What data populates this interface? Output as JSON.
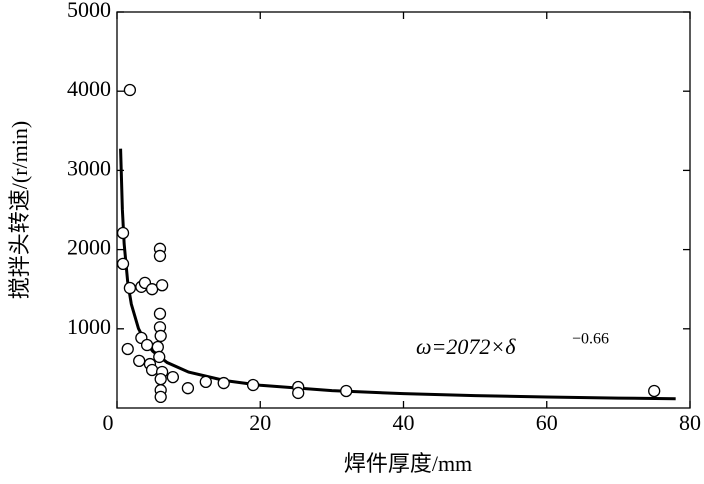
{
  "chart_data": {
    "type": "scatter",
    "x_label": "焊件厚度/mm",
    "y_label": "搅拌头转速/(r/min)",
    "annotation": {
      "text": "ω=2072×δ",
      "exponent": "−0.66"
    },
    "xlim": [
      0,
      80
    ],
    "xticks": [
      0,
      20,
      40,
      60,
      80
    ],
    "ylim": [
      0,
      5000
    ],
    "yticks": [
      1000,
      2000,
      3000,
      4000,
      5000
    ],
    "color": "#000000",
    "points": {
      "x": [
        0.84,
        0.84,
        1.8,
        1.8,
        1.5,
        3.4,
        3.9,
        4.9,
        3.4,
        3.1,
        4.2,
        4.6,
        4.9,
        6.0,
        6.0,
        6.3,
        6.0,
        6.0,
        6.1,
        5.7,
        5.9,
        6.3,
        6.1,
        6.1,
        6.1,
        7.8,
        9.9,
        12.4,
        14.9,
        19,
        25.3,
        25.3,
        32,
        75
      ],
      "values": [
        2210,
        1820,
        4015,
        1515,
        745,
        1530,
        1580,
        1500,
        885,
        595,
        795,
        555,
        480,
        2010,
        1920,
        1550,
        1190,
        1020,
        910,
        770,
        645,
        455,
        365,
        225,
        140,
        390,
        250,
        330,
        315,
        290,
        265,
        190,
        215,
        215
      ]
    },
    "curve": {
      "x": [
        0.5,
        0.75,
        1,
        1.5,
        2,
        3,
        4,
        5,
        7,
        10,
        15,
        20,
        30,
        40,
        50,
        60,
        70,
        78
      ],
      "values": [
        3274,
        2505,
        2072,
        1585,
        1311,
        1003,
        830,
        716,
        574,
        453,
        347,
        287,
        219,
        181,
        157,
        139,
        125,
        117
      ]
    }
  }
}
